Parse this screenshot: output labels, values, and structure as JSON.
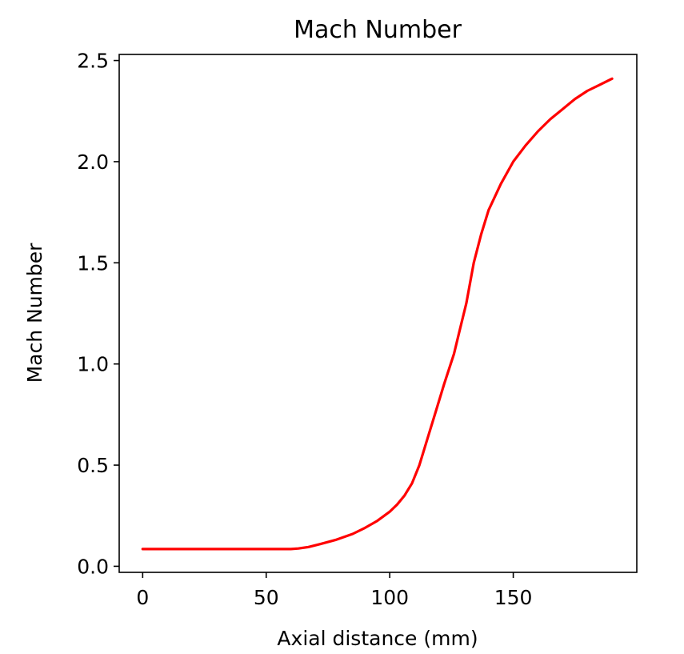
{
  "chart_data": {
    "type": "line",
    "title": "Mach Number",
    "xlabel": "Axial distance (mm)",
    "ylabel": "Mach Number",
    "xlim": [
      -9.5,
      200
    ],
    "ylim": [
      -0.03,
      2.53
    ],
    "x_ticks": [
      0,
      50,
      100,
      150
    ],
    "x_tick_labels": [
      "0",
      "50",
      "100",
      "150"
    ],
    "y_ticks": [
      0.0,
      0.5,
      1.0,
      1.5,
      2.0,
      2.5
    ],
    "y_tick_labels": [
      "0.0",
      "0.5",
      "1.0",
      "1.5",
      "2.0",
      "2.5"
    ],
    "grid": false,
    "series": [
      {
        "color": "#ff0000",
        "x": [
          0,
          10,
          20,
          30,
          40,
          50,
          60,
          63,
          67,
          72,
          78,
          85,
          90,
          95,
          100,
          103,
          106,
          109,
          112,
          115,
          118,
          122,
          126,
          128,
          131,
          134,
          137,
          140,
          145,
          150,
          155,
          160,
          165,
          170,
          175,
          180,
          185,
          190
        ],
        "y": [
          0.085,
          0.085,
          0.085,
          0.085,
          0.085,
          0.085,
          0.085,
          0.088,
          0.095,
          0.11,
          0.13,
          0.16,
          0.19,
          0.225,
          0.27,
          0.305,
          0.35,
          0.41,
          0.5,
          0.62,
          0.74,
          0.9,
          1.05,
          1.15,
          1.3,
          1.5,
          1.64,
          1.76,
          1.89,
          2.0,
          2.08,
          2.15,
          2.21,
          2.26,
          2.31,
          2.35,
          2.38,
          2.41
        ]
      }
    ]
  }
}
